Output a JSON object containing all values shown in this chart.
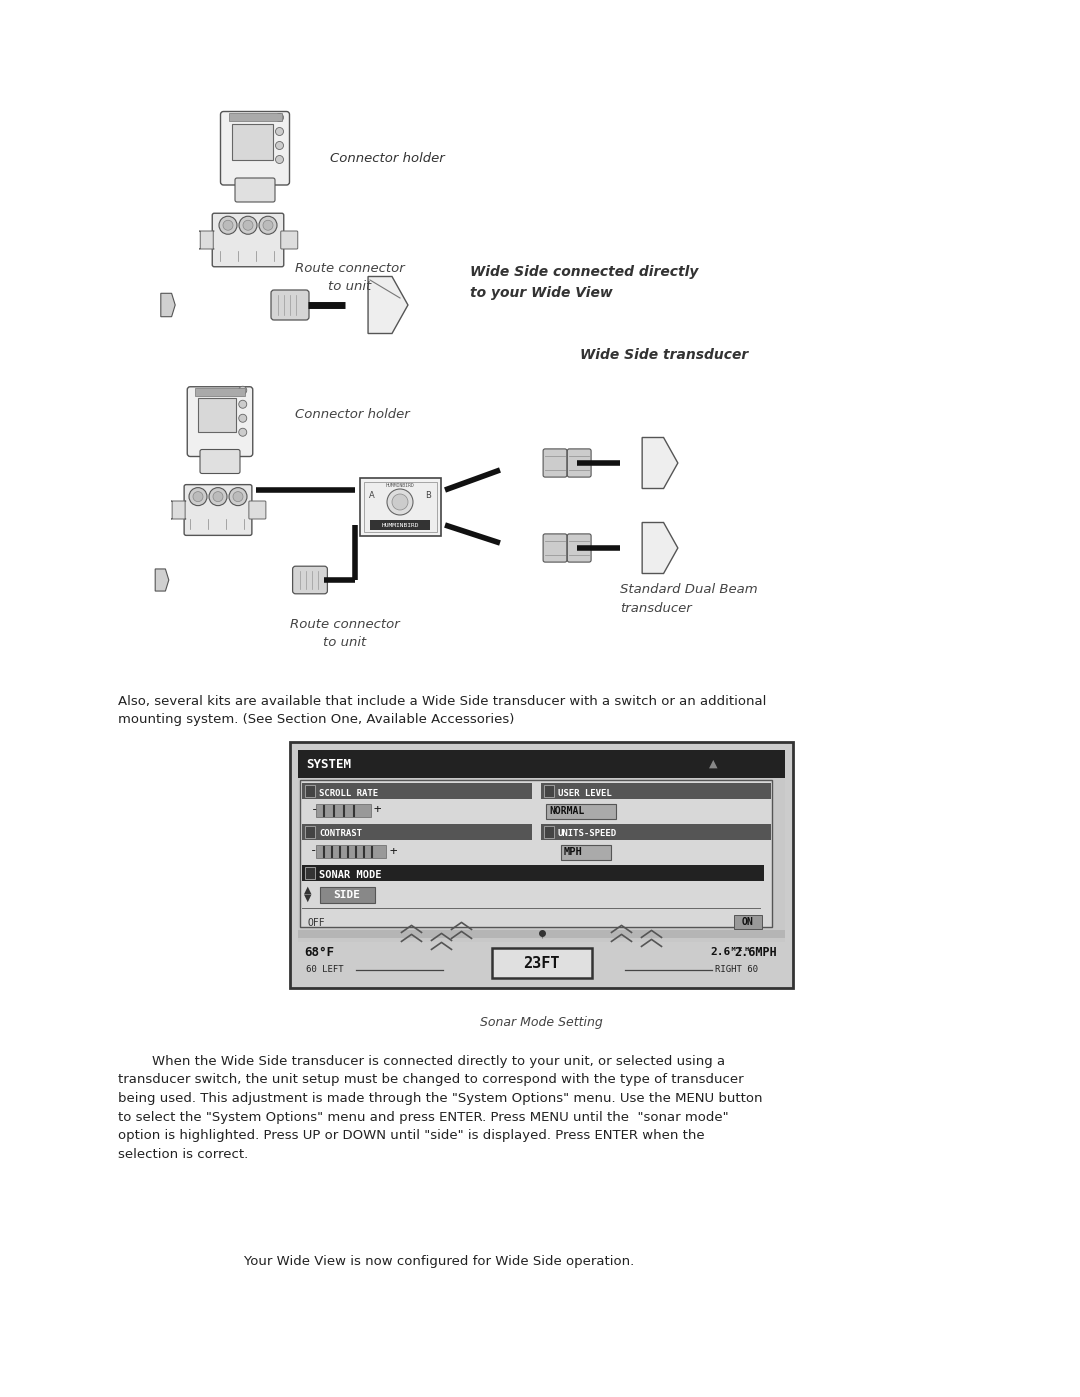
{
  "bg_color": "#ffffff",
  "page_width": 10.8,
  "page_height": 13.97,
  "diagram1_label_connector": "Connector holder",
  "diagram1_label_route": "Route connector\nto unit",
  "diagram1_label_wideside": "Wide Side connected directly\nto your Wide View",
  "diagram2_label_wideside_transducer": "Wide Side transducer",
  "diagram2_label_connector": "Connector holder",
  "diagram2_label_route": "Route connector\nto unit",
  "diagram2_label_standard": "Standard Dual Beam\ntransducer",
  "caption": "Sonar Mode Setting",
  "paragraph1": "Also, several kits are available that include a Wide Side transducer with a switch or an additional\nmounting system. (See Section One, Available Accessories)",
  "paragraph2_indent": "        When the Wide Side transducer is connected directly to your unit, or selected using a\ntransducer switch, the unit setup must be changed to correspond with the type of transducer\nbeing used. This adjustment is made through the \"System Options\" menu. Use the MENU button\nto select the \"System Options\" menu and press ENTER. Press MENU until the  \"sonar mode\"\noption is highlighted. Press UP or DOWN until \"side\" is displayed. Press ENTER when the\nselection is correct.",
  "paragraph3": "        Your Wide View is now configured for Wide Side operation.",
  "font_size_label": 9.5,
  "font_size_body": 9.5,
  "font_size_caption": 9.0
}
